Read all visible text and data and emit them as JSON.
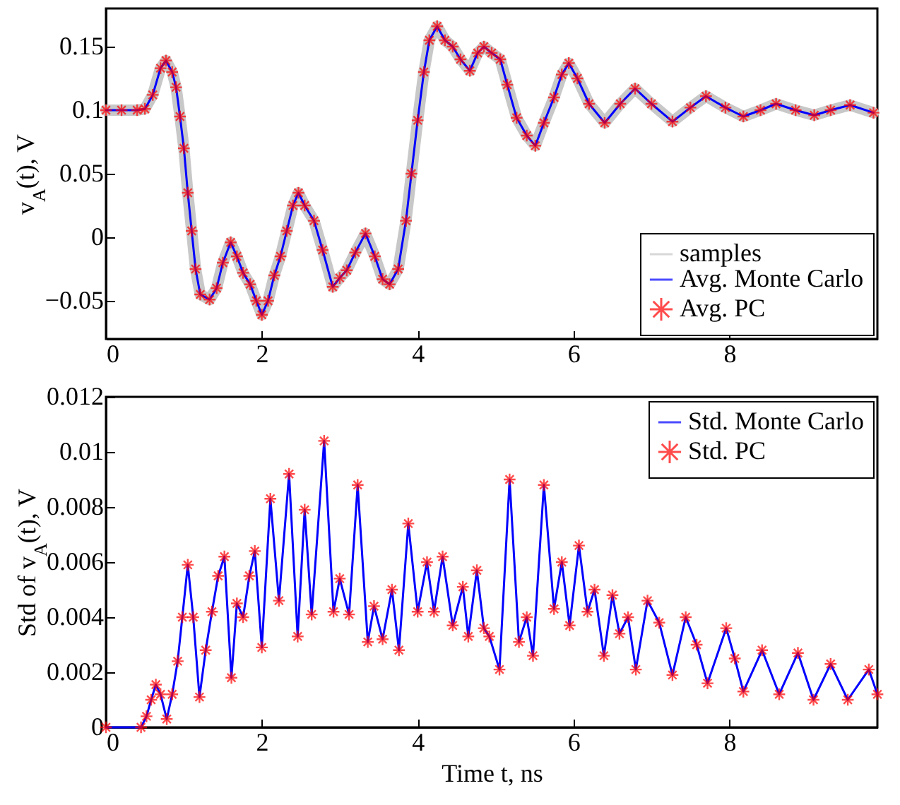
{
  "chart_data": [
    {
      "type": "line",
      "ylabel": "v$_{A}$(t), V",
      "xlim": [
        0,
        9.9
      ],
      "xticks": [
        0,
        2,
        4,
        6,
        8
      ],
      "ylim": [
        -0.08,
        0.18
      ],
      "yticks": [
        -0.05,
        0,
        0.05,
        0.1,
        0.15
      ],
      "legend": "bottom right",
      "x": [
        0,
        0.2,
        0.4,
        0.5,
        0.6,
        0.7,
        0.77,
        0.85,
        0.9,
        0.95,
        1.0,
        1.05,
        1.1,
        1.15,
        1.21,
        1.33,
        1.42,
        1.5,
        1.6,
        1.68,
        1.76,
        1.85,
        1.93,
        2.0,
        2.08,
        2.16,
        2.24,
        2.32,
        2.4,
        2.47,
        2.55,
        2.67,
        2.78,
        2.91,
        3.0,
        3.09,
        3.2,
        3.33,
        3.45,
        3.55,
        3.64,
        3.75,
        3.85,
        3.92,
        4.0,
        4.08,
        4.15,
        4.25,
        4.35,
        4.45,
        4.55,
        4.67,
        4.77,
        4.85,
        4.95,
        5.06,
        5.15,
        5.27,
        5.4,
        5.51,
        5.62,
        5.75,
        5.85,
        5.94,
        6.05,
        6.2,
        6.4,
        6.6,
        6.79,
        7.0,
        7.27,
        7.5,
        7.7,
        7.95,
        8.18,
        8.4,
        8.6,
        8.85,
        9.09,
        9.3,
        9.55,
        9.85
      ],
      "series": [
        {
          "name": "samples",
          "color": "#c8c8c8",
          "values": [
            0.1,
            0.1,
            0.1,
            0.101,
            0.112,
            0.133,
            0.139,
            0.13,
            0.118,
            0.095,
            0.07,
            0.035,
            0.005,
            -0.025,
            -0.045,
            -0.049,
            -0.04,
            -0.02,
            -0.004,
            -0.015,
            -0.028,
            -0.037,
            -0.05,
            -0.061,
            -0.05,
            -0.03,
            -0.015,
            0.005,
            0.025,
            0.035,
            0.025,
            0.013,
            -0.01,
            -0.039,
            -0.032,
            -0.026,
            -0.012,
            0.003,
            -0.015,
            -0.033,
            -0.037,
            -0.025,
            0.013,
            0.05,
            0.092,
            0.13,
            0.155,
            0.166,
            0.155,
            0.15,
            0.14,
            0.131,
            0.145,
            0.15,
            0.145,
            0.14,
            0.12,
            0.094,
            0.08,
            0.072,
            0.09,
            0.11,
            0.128,
            0.137,
            0.125,
            0.105,
            0.09,
            0.105,
            0.117,
            0.105,
            0.091,
            0.102,
            0.111,
            0.102,
            0.095,
            0.1,
            0.105,
            0.1,
            0.096,
            0.1,
            0.104,
            0.098
          ]
        },
        {
          "name": "Avg. Monte Carlo",
          "color": "#0000ff",
          "values": [
            0.1,
            0.1,
            0.1,
            0.101,
            0.112,
            0.133,
            0.139,
            0.13,
            0.118,
            0.095,
            0.07,
            0.035,
            0.005,
            -0.025,
            -0.045,
            -0.049,
            -0.04,
            -0.02,
            -0.004,
            -0.015,
            -0.028,
            -0.037,
            -0.05,
            -0.061,
            -0.05,
            -0.03,
            -0.015,
            0.005,
            0.025,
            0.035,
            0.025,
            0.013,
            -0.01,
            -0.039,
            -0.032,
            -0.026,
            -0.012,
            0.003,
            -0.015,
            -0.033,
            -0.037,
            -0.025,
            0.013,
            0.05,
            0.092,
            0.13,
            0.155,
            0.166,
            0.155,
            0.15,
            0.14,
            0.131,
            0.145,
            0.15,
            0.145,
            0.14,
            0.12,
            0.094,
            0.08,
            0.072,
            0.09,
            0.11,
            0.128,
            0.137,
            0.125,
            0.105,
            0.09,
            0.105,
            0.117,
            0.105,
            0.091,
            0.102,
            0.111,
            0.102,
            0.095,
            0.1,
            0.105,
            0.1,
            0.096,
            0.1,
            0.104,
            0.098
          ]
        },
        {
          "name": "Avg. PC",
          "color": "#ff0000",
          "type": "scatter",
          "marker": "cross",
          "values": [
            0.1,
            0.1,
            0.1,
            0.101,
            0.112,
            0.133,
            0.139,
            0.13,
            0.118,
            0.095,
            0.07,
            0.035,
            0.005,
            -0.025,
            -0.045,
            -0.049,
            -0.04,
            -0.02,
            -0.004,
            -0.015,
            -0.028,
            -0.037,
            -0.05,
            -0.061,
            -0.05,
            -0.03,
            -0.015,
            0.005,
            0.025,
            0.035,
            0.025,
            0.013,
            -0.01,
            -0.039,
            -0.032,
            -0.026,
            -0.012,
            0.003,
            -0.015,
            -0.033,
            -0.037,
            -0.025,
            0.013,
            0.05,
            0.092,
            0.13,
            0.155,
            0.166,
            0.155,
            0.15,
            0.14,
            0.131,
            0.145,
            0.15,
            0.145,
            0.14,
            0.12,
            0.094,
            0.08,
            0.072,
            0.09,
            0.11,
            0.128,
            0.137,
            0.125,
            0.105,
            0.09,
            0.105,
            0.117,
            0.105,
            0.091,
            0.102,
            0.111,
            0.102,
            0.095,
            0.1,
            0.105,
            0.1,
            0.096,
            0.1,
            0.104,
            0.098
          ]
        }
      ]
    },
    {
      "type": "line",
      "xlabel": "Time t, ns",
      "ylabel": "Std of v$_{A}$(t), V",
      "xlim": [
        0,
        9.9
      ],
      "xticks": [
        0,
        2,
        4,
        6,
        8
      ],
      "ylim": [
        0,
        0.012
      ],
      "yticks": [
        0,
        0.002,
        0.004,
        0.006,
        0.008,
        0.01,
        0.012
      ],
      "legend": "top right",
      "x": [
        0,
        0.45,
        0.52,
        0.58,
        0.64,
        0.7,
        0.78,
        0.85,
        0.92,
        0.98,
        1.05,
        1.12,
        1.2,
        1.28,
        1.36,
        1.44,
        1.52,
        1.61,
        1.68,
        1.76,
        1.84,
        1.91,
        2.0,
        2.11,
        2.22,
        2.35,
        2.46,
        2.55,
        2.64,
        2.8,
        2.92,
        3.0,
        3.12,
        3.23,
        3.36,
        3.44,
        3.55,
        3.67,
        3.76,
        3.88,
        4.0,
        4.12,
        4.21,
        4.32,
        4.45,
        4.58,
        4.65,
        4.76,
        4.85,
        4.92,
        5.05,
        5.18,
        5.3,
        5.4,
        5.48,
        5.62,
        5.75,
        5.85,
        5.95,
        6.07,
        6.18,
        6.27,
        6.39,
        6.5,
        6.59,
        6.7,
        6.8,
        6.95,
        7.1,
        7.27,
        7.44,
        7.58,
        7.72,
        7.96,
        8.07,
        8.18,
        8.42,
        8.64,
        8.88,
        9.08,
        9.3,
        9.52,
        9.79,
        9.9
      ],
      "series": [
        {
          "name": "Std. Monte Carlo",
          "color": "#0000ff",
          "values": [
            0,
            0,
            0.0004,
            0.001,
            0.00155,
            0.0012,
            0.0003,
            0.0012,
            0.0024,
            0.004,
            0.0059,
            0.004,
            0.0011,
            0.0028,
            0.0042,
            0.0055,
            0.0062,
            0.0018,
            0.0045,
            0.004,
            0.0055,
            0.0064,
            0.0029,
            0.0083,
            0.0046,
            0.0092,
            0.0033,
            0.0079,
            0.0041,
            0.0104,
            0.0042,
            0.0054,
            0.0041,
            0.0088,
            0.0031,
            0.0044,
            0.0032,
            0.005,
            0.0028,
            0.0074,
            0.0042,
            0.006,
            0.0042,
            0.0062,
            0.0037,
            0.0051,
            0.0033,
            0.0057,
            0.0036,
            0.0033,
            0.0021,
            0.009,
            0.0031,
            0.004,
            0.0026,
            0.0088,
            0.0043,
            0.006,
            0.0037,
            0.0066,
            0.0042,
            0.005,
            0.0026,
            0.0048,
            0.0034,
            0.004,
            0.0021,
            0.0046,
            0.0038,
            0.0019,
            0.004,
            0.003,
            0.0016,
            0.0036,
            0.0025,
            0.0013,
            0.0028,
            0.0012,
            0.0027,
            0.001,
            0.0023,
            0.001,
            0.0021,
            0.0012
          ]
        },
        {
          "name": "Std. PC",
          "color": "#ff0000",
          "type": "scatter",
          "marker": "cross",
          "values": [
            0,
            0,
            0.0004,
            0.001,
            0.00155,
            0.0012,
            0.0003,
            0.0012,
            0.0024,
            0.004,
            0.0059,
            0.004,
            0.0011,
            0.0028,
            0.0042,
            0.0055,
            0.0062,
            0.0018,
            0.0045,
            0.004,
            0.0055,
            0.0064,
            0.0029,
            0.0083,
            0.0046,
            0.0092,
            0.0033,
            0.0079,
            0.0041,
            0.0104,
            0.0042,
            0.0054,
            0.0041,
            0.0088,
            0.0031,
            0.0044,
            0.0032,
            0.005,
            0.0028,
            0.0074,
            0.0042,
            0.006,
            0.0042,
            0.0062,
            0.0037,
            0.0051,
            0.0033,
            0.0057,
            0.0036,
            0.0033,
            0.0021,
            0.009,
            0.0031,
            0.004,
            0.0026,
            0.0088,
            0.0043,
            0.006,
            0.0037,
            0.0066,
            0.0042,
            0.005,
            0.0026,
            0.0048,
            0.0034,
            0.004,
            0.0021,
            0.0046,
            0.0038,
            0.0019,
            0.004,
            0.003,
            0.0016,
            0.0036,
            0.0025,
            0.0013,
            0.0028,
            0.0012,
            0.0027,
            0.001,
            0.0023,
            0.001,
            0.0021,
            0.0012
          ]
        }
      ]
    }
  ]
}
